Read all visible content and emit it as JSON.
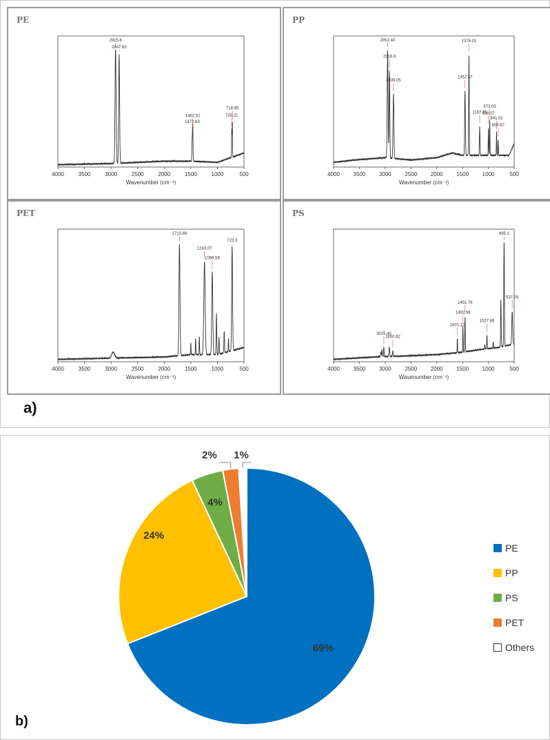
{
  "section_a_label": "a)",
  "section_b_label": "b)",
  "panels": [
    {
      "tag": "PE",
      "xlabel": "Wavenumber (cm⁻¹)",
      "ticks": [
        "4000",
        "3500",
        "3000",
        "2500",
        "2000",
        "1500",
        "1000",
        "500"
      ],
      "peaks": [
        {
          "label": "2915.6",
          "wn": 2915.6
        },
        {
          "label": "2847.93",
          "wn": 2847.93
        },
        {
          "label": "1472.63",
          "wn": 1472.63
        },
        {
          "label": "1462.51",
          "wn": 1462.51
        },
        {
          "label": "730.21",
          "wn": 730.21
        },
        {
          "label": "718.95",
          "wn": 718.95
        }
      ]
    },
    {
      "tag": "PP",
      "xlabel": "Wavenumber (cm⁻¹)",
      "ticks": [
        "4000",
        "3500",
        "3000",
        "2500",
        "2000",
        "1500",
        "1000",
        "500"
      ],
      "peaks": [
        {
          "label": "2952.40",
          "wn": 2952.4
        },
        {
          "label": "2916.9",
          "wn": 2916.9
        },
        {
          "label": "2839.05",
          "wn": 2839.05
        },
        {
          "label": "1452.47",
          "wn": 1452.47
        },
        {
          "label": "1376.01",
          "wn": 1376.01
        },
        {
          "label": "1167.75",
          "wn": 1167.75
        },
        {
          "label": "998.07",
          "wn": 998.07
        },
        {
          "label": "973.05",
          "wn": 973.05
        },
        {
          "label": "841.02",
          "wn": 841.02
        },
        {
          "label": "809.97",
          "wn": 809.97
        }
      ]
    },
    {
      "tag": "PET",
      "xlabel": "Wavenumber (cm⁻¹)",
      "ticks": [
        "4000",
        "3500",
        "3000",
        "2500",
        "2000",
        "1500",
        "1000",
        "500"
      ],
      "peaks": [
        {
          "label": "1713.69",
          "wn": 1713.69
        },
        {
          "label": "1243.07",
          "wn": 1243.07
        },
        {
          "label": "1096.56",
          "wn": 1096.56
        },
        {
          "label": "723.3",
          "wn": 723.3
        }
      ]
    },
    {
      "tag": "PS",
      "xlabel": "Wavenumber (cm⁻¹)",
      "ticks": [
        "4000",
        "3500",
        "3000",
        "2500",
        "2000",
        "1500",
        "1000",
        "500"
      ],
      "peaks": [
        {
          "label": "3025.40",
          "wn": 3025.4
        },
        {
          "label": "2850.62",
          "wn": 2850.62
        },
        {
          "label": "1601.12",
          "wn": 1601.12
        },
        {
          "label": "1492.58",
          "wn": 1492.58
        },
        {
          "label": "1451.76",
          "wn": 1451.76
        },
        {
          "label": "1027.86",
          "wn": 1027.86
        },
        {
          "label": "695.1",
          "wn": 695.1
        },
        {
          "label": "537.78",
          "wn": 537.78
        }
      ]
    }
  ],
  "chart_data": [
    {
      "type": "line",
      "panel": "PE",
      "xlabel": "Wavenumber (cm⁻¹)",
      "xlim": [
        4000,
        500
      ],
      "x_reversed": true,
      "peaks_cm1": [
        2915.6,
        2847.93,
        1472.63,
        1462.51,
        730.21,
        718.95
      ]
    },
    {
      "type": "line",
      "panel": "PP",
      "xlabel": "Wavenumber (cm⁻¹)",
      "xlim": [
        4000,
        500
      ],
      "x_reversed": true,
      "peaks_cm1": [
        2952.4,
        2916.9,
        2839.05,
        1452.47,
        1376.01,
        1167.75,
        998.07,
        973.05,
        841.02,
        809.97
      ]
    },
    {
      "type": "line",
      "panel": "PET",
      "xlabel": "Wavenumber (cm⁻¹)",
      "xlim": [
        4000,
        500
      ],
      "x_reversed": true,
      "peaks_cm1": [
        1713.69,
        1243.07,
        1096.56,
        723.3
      ]
    },
    {
      "type": "line",
      "panel": "PS",
      "xlabel": "Wavenumber (cm⁻¹)",
      "xlim": [
        4000,
        500
      ],
      "x_reversed": true,
      "peaks_cm1": [
        3025.4,
        2850.62,
        1601.12,
        1492.58,
        1451.76,
        1027.86,
        695.1,
        537.78
      ]
    },
    {
      "type": "pie",
      "categories": [
        "PE",
        "PP",
        "PS",
        "PET",
        "Others"
      ],
      "values": [
        69,
        24,
        4,
        2,
        1
      ],
      "labels": [
        "69%",
        "24%",
        "4%",
        "2%",
        "1%"
      ],
      "colors": [
        "#0070C0",
        "#FFC000",
        "#70AD47",
        "#ED7D31",
        "#FFFFFF"
      ],
      "legend": "right"
    }
  ]
}
